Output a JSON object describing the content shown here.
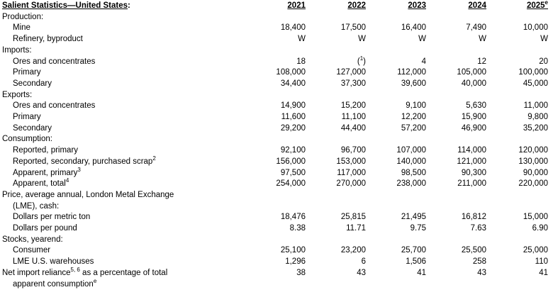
{
  "page": {
    "background_color": "#ffffff",
    "text_color": "#000000"
  },
  "table": {
    "title": "Salient Statistics—United States",
    "title_suffix": ":",
    "years": [
      "2021",
      "2022",
      "2023",
      "2024",
      "2025^e^"
    ],
    "rows": [
      {
        "label": "Production:",
        "indent": 0,
        "values": []
      },
      {
        "label": "Mine",
        "indent": 1,
        "values": [
          "18,400",
          "17,500",
          "16,400",
          "7,490",
          "10,000"
        ]
      },
      {
        "label": "Refinery, byproduct",
        "indent": 1,
        "values": [
          "W",
          "W",
          "W",
          "W",
          "W"
        ]
      },
      {
        "label": "Imports:",
        "indent": 0,
        "values": []
      },
      {
        "label": "Ores and concentrates",
        "indent": 1,
        "values": [
          "18",
          "(^1^)",
          "4",
          "12",
          "20"
        ]
      },
      {
        "label": "Primary",
        "indent": 1,
        "values": [
          "108,000",
          "127,000",
          "112,000",
          "105,000",
          "100,000"
        ]
      },
      {
        "label": "Secondary",
        "indent": 1,
        "values": [
          "34,400",
          "37,300",
          "39,600",
          "40,000",
          "45,000"
        ]
      },
      {
        "label": "Exports:",
        "indent": 0,
        "values": []
      },
      {
        "label": "Ores and concentrates",
        "indent": 1,
        "values": [
          "14,900",
          "15,200",
          "9,100",
          "5,630",
          "11,000"
        ]
      },
      {
        "label": "Primary",
        "indent": 1,
        "values": [
          "11,600",
          "11,100",
          "12,200",
          "15,900",
          "9,800"
        ]
      },
      {
        "label": "Secondary",
        "indent": 1,
        "values": [
          "29,200",
          "44,400",
          "57,200",
          "46,900",
          "35,200"
        ]
      },
      {
        "label": "Consumption:",
        "indent": 0,
        "values": []
      },
      {
        "label": "Reported, primary",
        "indent": 1,
        "values": [
          "92,100",
          "96,700",
          "107,000",
          "114,000",
          "120,000"
        ]
      },
      {
        "label": "Reported, secondary, purchased scrap^2^",
        "indent": 1,
        "values": [
          "156,000",
          "153,000",
          "140,000",
          "121,000",
          "130,000"
        ]
      },
      {
        "label": "Apparent, primary^3^",
        "indent": 1,
        "values": [
          "97,500",
          "117,000",
          "98,500",
          "90,300",
          "90,000"
        ]
      },
      {
        "label": "Apparent, total^4^",
        "indent": 1,
        "values": [
          "254,000",
          "270,000",
          "238,000",
          "211,000",
          "220,000"
        ]
      },
      {
        "label": "Price, average annual, London Metal Exchange",
        "label2": "(LME), cash:",
        "indent": 0,
        "values": []
      },
      {
        "label": "Dollars per metric ton",
        "indent": 1,
        "values": [
          "18,476",
          "25,815",
          "21,495",
          "16,812",
          "15,000"
        ]
      },
      {
        "label": "Dollars per pound",
        "indent": 1,
        "values": [
          "8.38",
          "11.71",
          "9.75",
          "7.63",
          "6.90"
        ]
      },
      {
        "label": "Stocks, yearend:",
        "indent": 0,
        "values": []
      },
      {
        "label": "Consumer",
        "indent": 1,
        "values": [
          "25,100",
          "23,200",
          "25,700",
          "25,500",
          "25,000"
        ]
      },
      {
        "label": "LME U.S. warehouses",
        "indent": 1,
        "values": [
          "1,296",
          "6",
          "1,506",
          "258",
          "110"
        ]
      },
      {
        "label": "Net import reliance^5, 6^ as a percentage of total",
        "label2": "apparent consumption^e^",
        "indent": 0,
        "values": [
          "38",
          "43",
          "41",
          "43",
          "41"
        ]
      }
    ]
  }
}
